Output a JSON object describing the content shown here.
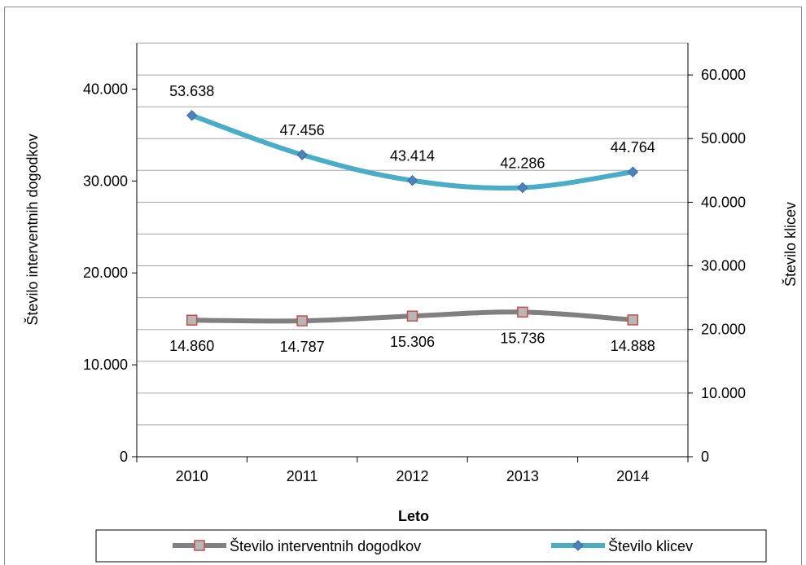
{
  "chart_data": {
    "type": "line",
    "categories": [
      "2010",
      "2011",
      "2012",
      "2013",
      "2014"
    ],
    "xlabel": "Leto",
    "ylabel_left": "Število interventnih dogodkov",
    "ylabel_right": "Število klicev",
    "ylim_left": [
      0,
      45000
    ],
    "ylim_right": [
      0,
      65000
    ],
    "yticks_left": [
      "0",
      "10.000",
      "20.000",
      "30.000",
      "40.000"
    ],
    "yticks_right": [
      "0",
      "10.000",
      "20.000",
      "30.000",
      "40.000",
      "50.000",
      "60.000"
    ],
    "grid": true,
    "legend_position": "bottom",
    "series": [
      {
        "name": "Število interventnih dogodkov",
        "axis": "left",
        "color": "#808080",
        "marker": "square",
        "marker_color": "#c0504d",
        "values": [
          14860,
          14787,
          15306,
          15736,
          14888
        ],
        "labels": [
          "14.860",
          "14.787",
          "15.306",
          "15.736",
          "14.888"
        ]
      },
      {
        "name": "Število klicev",
        "axis": "right",
        "color": "#4bacc6",
        "marker": "diamond",
        "marker_color": "#4f81bd",
        "values": [
          53638,
          47456,
          43414,
          42286,
          44764
        ],
        "labels": [
          "53.638",
          "47.456",
          "43.414",
          "42.286",
          "44.764"
        ]
      }
    ]
  }
}
